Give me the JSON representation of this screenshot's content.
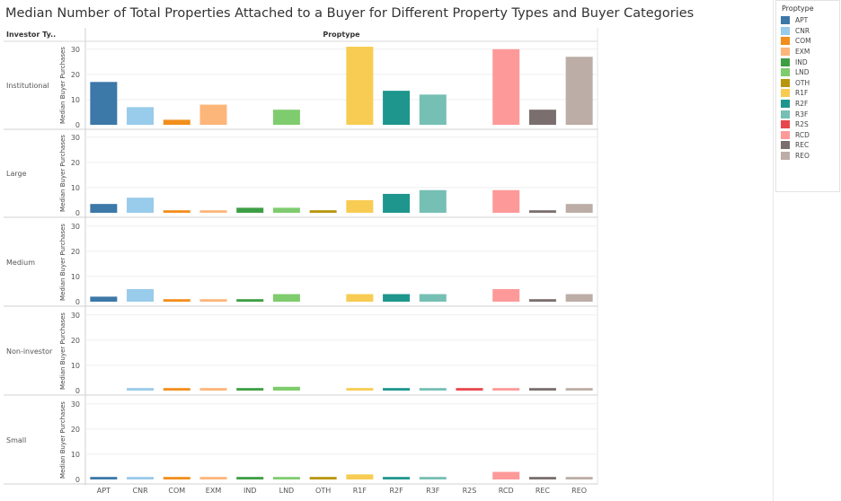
{
  "title": "Median Number of Total Properties Attached to a Buyer for Different Property Types and Buyer Categories",
  "colors": {
    "APT": "#3c78a8",
    "CNR": "#99cbea",
    "COM": "#f28e1c",
    "EXM": "#fcb67a",
    "IND": "#3e9e44",
    "LND": "#7fcc6e",
    "OTH": "#b8960c",
    "R1F": "#f8cc52",
    "R2F": "#1f968d",
    "R3F": "#76bfb4",
    "R2S": "#e8464c",
    "RCD": "#fd9a99",
    "REC": "#7a6f6e",
    "REO": "#bcada6"
  },
  "chart_data": {
    "type": "bar",
    "title": "Median Number of Total Properties Attached to a Buyer for Different Property Types and Buyer Categories",
    "row_header": "Investor Ty..",
    "column_header": "Proptype",
    "ylabel": "Median Buyer Purchases",
    "ylim": [
      0,
      31
    ],
    "yticks": [
      0,
      10,
      20,
      30
    ],
    "grid": true,
    "legend_position": "right",
    "legend_title": "Proptype",
    "categories": [
      "APT",
      "CNR",
      "COM",
      "EXM",
      "IND",
      "LND",
      "OTH",
      "R1F",
      "R2F",
      "R3F",
      "R2S",
      "RCD",
      "REC",
      "REO"
    ],
    "panels": [
      {
        "name": "Institutional",
        "values": [
          17,
          7,
          2,
          8,
          null,
          6,
          null,
          31,
          13.5,
          12,
          null,
          30,
          6,
          27
        ]
      },
      {
        "name": "Large",
        "values": [
          3.5,
          6,
          1,
          1,
          2,
          2,
          1,
          5,
          7.5,
          9,
          null,
          9,
          1,
          3.5
        ]
      },
      {
        "name": "Medium",
        "values": [
          2,
          5,
          1,
          1,
          1,
          3,
          null,
          3,
          3,
          3,
          null,
          5,
          1,
          3
        ]
      },
      {
        "name": "Non-investor",
        "values": [
          null,
          1,
          1,
          1,
          1,
          1.5,
          null,
          1,
          1,
          1,
          1,
          1,
          1,
          1
        ]
      },
      {
        "name": "Small",
        "values": [
          1,
          1,
          1,
          1,
          1,
          1,
          1,
          2,
          1,
          1,
          null,
          3,
          1,
          1
        ]
      }
    ]
  },
  "legend": {
    "title": "Proptype",
    "items": [
      "APT",
      "CNR",
      "COM",
      "EXM",
      "IND",
      "LND",
      "OTH",
      "R1F",
      "R2F",
      "R3F",
      "R2S",
      "RCD",
      "REC",
      "REO"
    ]
  }
}
